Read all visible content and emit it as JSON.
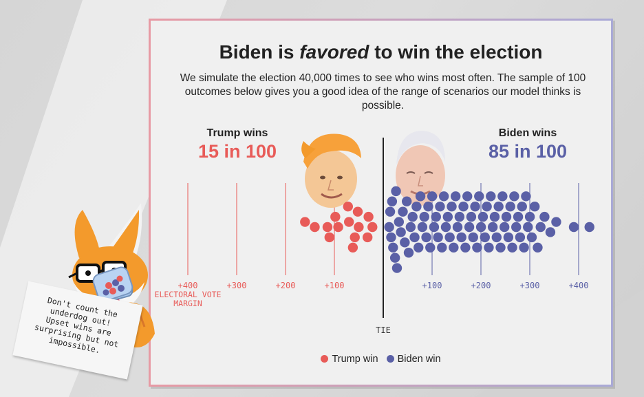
{
  "header": {
    "title_prefix": "Biden is",
    "title_emph": "favored",
    "title_suffix": "to win the election",
    "subtitle": "We simulate the election 40,000 times to see who wins most often. The sample of 100 outcomes below gives you a good idea of the range of scenarios our model thinks is possible."
  },
  "trump": {
    "label": "Trump wins",
    "count": "15 in 100",
    "color": "#e85b58"
  },
  "biden": {
    "label": "Biden wins",
    "count": "85 in 100",
    "color": "#5a60a6"
  },
  "legend": {
    "trump": "Trump win",
    "biden": "Biden win"
  },
  "note": {
    "text": "Don't count the\nunderdog out!\nUpset wins are\nsurprising but not\nimpossible."
  },
  "chart_data": {
    "type": "scatter",
    "title": "Biden is favored to win the election",
    "xlabel": "ELECTORAL VOTE MARGIN",
    "center_label": "TIE",
    "trump_ticks": [
      "+400",
      "+300",
      "+200",
      "+100"
    ],
    "biden_ticks": [
      "+100",
      "+200",
      "+300",
      "+400"
    ],
    "tick_values": [
      100,
      200,
      300,
      400
    ],
    "series": [
      {
        "name": "Trump win",
        "count": 15,
        "margins": [
          12,
          20,
          22,
          40,
          42,
          48,
          52,
          60,
          62,
          82,
          88,
          100,
          104,
          130,
          150
        ]
      },
      {
        "name": "Biden win",
        "count": 85,
        "margins": [
          2,
          4,
          6,
          8,
          10,
          14,
          16,
          18,
          22,
          26,
          30,
          34,
          38,
          42,
          46,
          50,
          54,
          58,
          62,
          66,
          70,
          74,
          78,
          82,
          86,
          90,
          94,
          98,
          102,
          106,
          110,
          114,
          118,
          122,
          126,
          130,
          134,
          138,
          142,
          146,
          150,
          154,
          158,
          162,
          166,
          170,
          174,
          178,
          182,
          186,
          190,
          194,
          198,
          202,
          206,
          210,
          214,
          218,
          222,
          226,
          230,
          234,
          238,
          242,
          246,
          250,
          254,
          258,
          262,
          266,
          270,
          274,
          278,
          282,
          286,
          290,
          294,
          300,
          306,
          312,
          320,
          332,
          344,
          380,
          412
        ]
      }
    ]
  }
}
